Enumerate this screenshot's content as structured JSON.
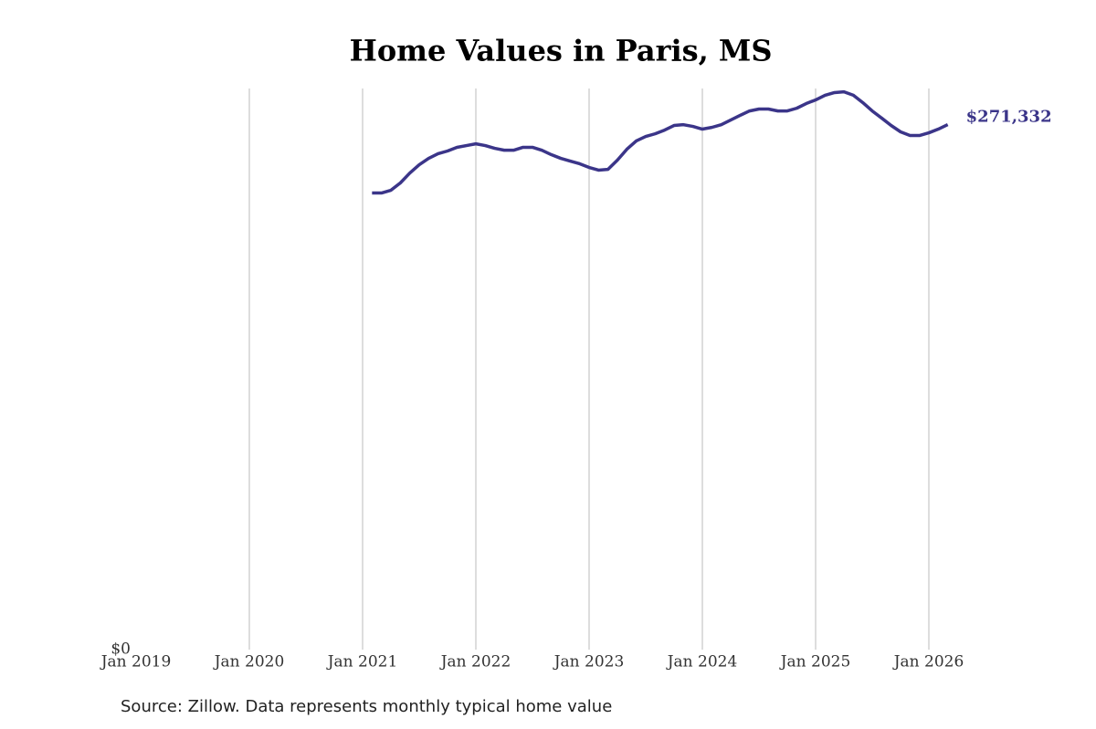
{
  "chart_data": {
    "type": "line",
    "title": "Home Values in Paris, MS",
    "source": "Source: Zillow. Data represents monthly typical home value",
    "x": [
      "2021-02",
      "2021-03",
      "2021-04",
      "2021-05",
      "2021-06",
      "2021-07",
      "2021-08",
      "2021-09",
      "2021-10",
      "2021-11",
      "2021-12",
      "2022-01",
      "2022-02",
      "2022-03",
      "2022-04",
      "2022-05",
      "2022-06",
      "2022-07",
      "2022-08",
      "2022-09",
      "2022-10",
      "2022-11",
      "2022-12",
      "2023-01",
      "2023-02",
      "2023-03",
      "2023-04",
      "2023-05",
      "2023-06",
      "2023-07",
      "2023-08",
      "2023-09",
      "2023-10",
      "2023-11",
      "2023-12",
      "2024-01",
      "2024-02",
      "2024-03",
      "2024-04",
      "2024-05",
      "2024-06",
      "2024-07",
      "2024-08",
      "2024-09",
      "2024-10",
      "2024-11",
      "2024-12",
      "2025-01",
      "2025-02",
      "2025-03",
      "2025-04",
      "2025-05",
      "2025-06",
      "2025-07",
      "2025-08",
      "2025-09",
      "2025-10",
      "2025-11",
      "2025-12",
      "2026-01",
      "2026-02",
      "2026-03"
    ],
    "values": [
      236000,
      236000,
      237400,
      241200,
      246300,
      250600,
      253900,
      256300,
      257700,
      259600,
      260500,
      261400,
      260500,
      259100,
      258100,
      258100,
      259600,
      259600,
      258100,
      255800,
      253900,
      252500,
      251100,
      249200,
      247800,
      248200,
      253000,
      258600,
      262900,
      265200,
      266600,
      268500,
      270900,
      271300,
      270400,
      269000,
      269900,
      271300,
      273700,
      276100,
      278400,
      279400,
      279400,
      278400,
      278400,
      279800,
      282200,
      284100,
      286500,
      287900,
      288300,
      286500,
      282700,
      278400,
      274700,
      270900,
      267600,
      265700,
      265700,
      267100,
      269000,
      271332
    ],
    "value_labels": [
      null,
      null,
      null,
      null,
      null,
      null,
      null,
      null,
      null,
      null,
      null,
      null,
      null,
      null,
      null,
      null,
      null,
      null,
      null,
      null,
      null,
      null,
      null,
      null,
      null,
      null,
      null,
      null,
      null,
      null,
      null,
      null,
      null,
      null,
      null,
      null,
      null,
      null,
      null,
      null,
      null,
      null,
      null,
      null,
      null,
      null,
      null,
      null,
      null,
      null,
      null,
      null,
      null,
      null,
      null,
      null,
      null,
      null,
      null,
      null,
      null,
      "$271,332"
    ],
    "color": "#3b3589",
    "xlim": [
      "2019-01",
      "2026-04"
    ],
    "xticks": [
      {
        "value": "2019-01",
        "label": "Jan 2019"
      },
      {
        "value": "2020-01",
        "label": "Jan 2020"
      },
      {
        "value": "2021-01",
        "label": "Jan 2021"
      },
      {
        "value": "2022-01",
        "label": "Jan 2022"
      },
      {
        "value": "2023-01",
        "label": "Jan 2023"
      },
      {
        "value": "2024-01",
        "label": "Jan 2024"
      },
      {
        "value": "2025-01",
        "label": "Jan 2025"
      },
      {
        "value": "2026-01",
        "label": "Jan 2026"
      }
    ],
    "ylim": [
      0,
      290000
    ],
    "yticks": [
      {
        "value": 0,
        "label": "$0"
      }
    ],
    "grid": true
  }
}
